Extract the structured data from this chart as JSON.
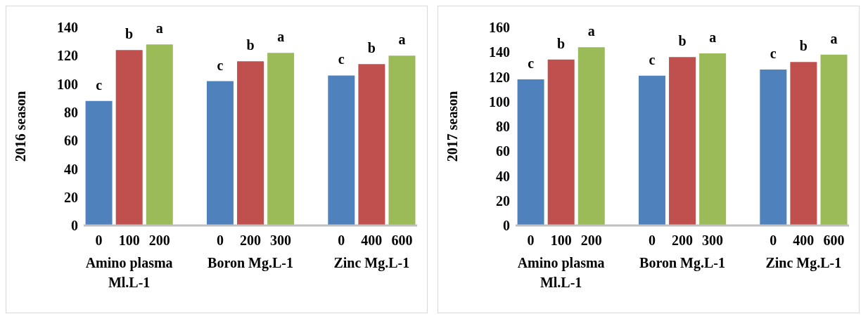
{
  "chart_data": [
    {
      "type": "bar",
      "ylabel": "2016 season",
      "categories": [
        "0",
        "100",
        "200",
        "0",
        "200",
        "300",
        "0",
        "400",
        "600"
      ],
      "values": [
        88,
        124,
        128,
        102,
        116,
        122,
        106,
        114,
        120
      ],
      "colors": [
        "#4f81bd",
        "#c0504d",
        "#9bbb59",
        "#4f81bd",
        "#c0504d",
        "#9bbb59",
        "#4f81bd",
        "#c0504d",
        "#9bbb59"
      ],
      "value_labels": [
        "c",
        "b",
        "a",
        "c",
        "b",
        "a",
        "c",
        "b",
        "a"
      ],
      "ylim": [
        0,
        140
      ],
      "yticks": [
        0,
        20,
        40,
        60,
        80,
        100,
        120,
        140
      ],
      "grid": false,
      "legend": false,
      "annotations": [
        "Amino plasma Ml.L-1",
        "Boron Mg.L-1",
        "Zinc Mg.L-1"
      ]
    },
    {
      "type": "bar",
      "ylabel": "2017 season",
      "categories": [
        "0",
        "100",
        "200",
        "0",
        "200",
        "300",
        "0",
        "400",
        "600"
      ],
      "values": [
        118,
        134,
        144,
        121,
        136,
        139,
        126,
        132,
        138
      ],
      "colors": [
        "#4f81bd",
        "#c0504d",
        "#9bbb59",
        "#4f81bd",
        "#c0504d",
        "#9bbb59",
        "#4f81bd",
        "#c0504d",
        "#9bbb59"
      ],
      "value_labels": [
        "c",
        "b",
        "a",
        "c",
        "b",
        "a",
        "c",
        "b",
        "a"
      ],
      "ylim": [
        0,
        160
      ],
      "yticks": [
        0,
        20,
        40,
        60,
        80,
        100,
        120,
        140,
        160
      ],
      "grid": false,
      "legend": false,
      "annotations": [
        "Amino plasma Ml.L-1",
        "Boron Mg.L-1",
        "Zinc Mg.L-1"
      ]
    }
  ]
}
